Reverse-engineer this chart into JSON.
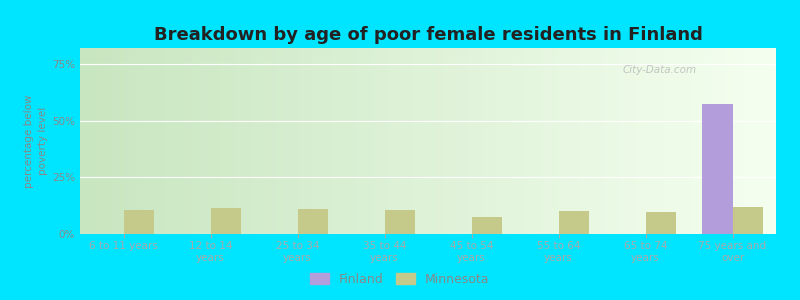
{
  "title": "Breakdown by age of poor female residents in Finland",
  "categories": [
    "6 to 11 years",
    "12 to 14\nyears",
    "25 to 34\nyears",
    "35 to 44\nyears",
    "45 to 54\nyears",
    "55 to 64\nyears",
    "65 to 74\nyears",
    "75 years and\nover"
  ],
  "finland_values": [
    0,
    0,
    0,
    0,
    0,
    0,
    0,
    57.5
  ],
  "minnesota_values": [
    10.5,
    11.5,
    11.0,
    10.5,
    7.5,
    10.0,
    9.5,
    12.0
  ],
  "finland_color": "#b39ddb",
  "minnesota_color": "#c5c98a",
  "ylabel": "percentage below\npoverty level",
  "ylim": [
    0,
    82
  ],
  "yticks": [
    0,
    25,
    50,
    75
  ],
  "ytick_labels": [
    "0%",
    "25%",
    "50%",
    "75%"
  ],
  "bar_width": 0.35,
  "outer_bg": "#00e5ff",
  "grid_color": "#ffffff",
  "watermark_text": "City-Data.com",
  "title_fontsize": 13,
  "label_fontsize": 7.5,
  "tick_fontsize": 7.5,
  "legend_fontsize": 9,
  "bg_left_color": "#c8e6c0",
  "bg_right_color": "#f5fff0"
}
